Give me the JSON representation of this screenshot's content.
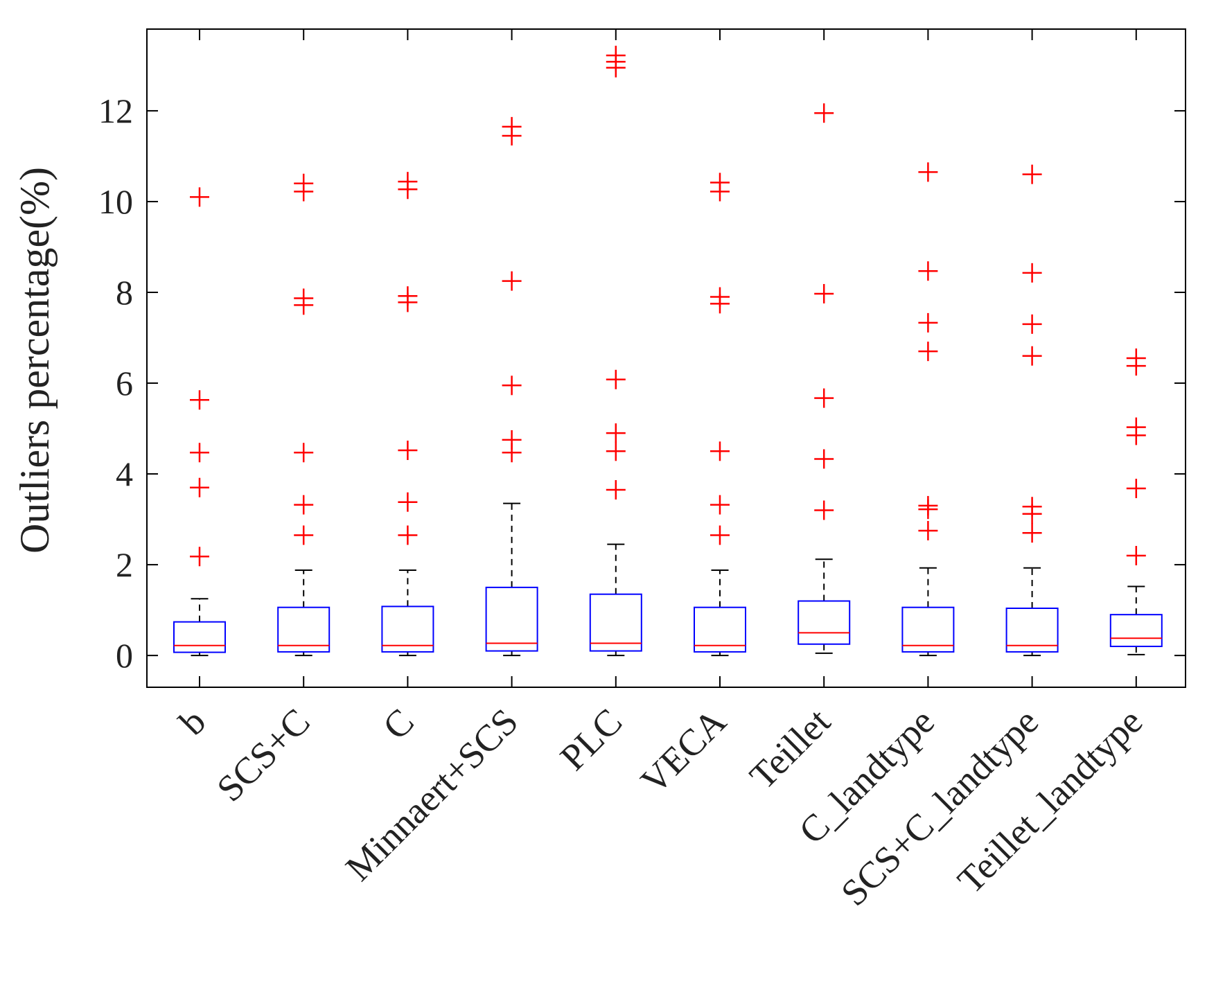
{
  "chart_data": {
    "type": "boxplot",
    "title": "",
    "xlabel": "",
    "ylabel": "Outliers percentage(%)",
    "ylim": [
      -0.7,
      13.8
    ],
    "yticks": [
      0,
      2,
      4,
      6,
      8,
      10,
      12
    ],
    "categories": [
      "b",
      "SCS+C",
      "C",
      "Minnaert+SCS",
      "PLC",
      "VECA",
      "Teillet",
      "C_landtype",
      "SCS+C_landtype",
      "Teillet_landtype"
    ],
    "boxes": [
      {
        "name": "b",
        "whisker_low": 0,
        "q1": 0.07,
        "median": 0.22,
        "q3": 0.74,
        "whisker_high": 1.25,
        "outliers": [
          2.18,
          3.7,
          4.47,
          5.63,
          10.1
        ]
      },
      {
        "name": "SCS+C",
        "whisker_low": 0,
        "q1": 0.08,
        "median": 0.22,
        "q3": 1.06,
        "whisker_high": 1.88,
        "outliers": [
          2.65,
          3.32,
          4.47,
          7.72,
          7.87,
          10.22,
          10.4
        ]
      },
      {
        "name": "C",
        "whisker_low": 0,
        "q1": 0.08,
        "median": 0.22,
        "q3": 1.08,
        "whisker_high": 1.88,
        "outliers": [
          2.65,
          3.38,
          4.52,
          7.78,
          7.92,
          10.27,
          10.44
        ]
      },
      {
        "name": "Minnaert+SCS",
        "whisker_low": 0,
        "q1": 0.1,
        "median": 0.27,
        "q3": 1.5,
        "whisker_high": 3.35,
        "outliers": [
          4.47,
          4.75,
          5.95,
          8.25,
          11.45,
          11.65
        ]
      },
      {
        "name": "PLC",
        "whisker_low": 0,
        "q1": 0.1,
        "median": 0.27,
        "q3": 1.35,
        "whisker_high": 2.45,
        "outliers": [
          3.65,
          4.5,
          4.9,
          6.08,
          12.95,
          13.08,
          13.22
        ]
      },
      {
        "name": "VECA",
        "whisker_low": 0,
        "q1": 0.08,
        "median": 0.22,
        "q3": 1.06,
        "whisker_high": 1.88,
        "outliers": [
          2.65,
          3.32,
          4.5,
          7.75,
          7.9,
          10.22,
          10.42
        ]
      },
      {
        "name": "Teillet",
        "whisker_low": 0.05,
        "q1": 0.25,
        "median": 0.5,
        "q3": 1.2,
        "whisker_high": 2.12,
        "outliers": [
          3.2,
          4.33,
          5.67,
          7.97,
          11.95
        ]
      },
      {
        "name": "C_landtype",
        "whisker_low": 0,
        "q1": 0.08,
        "median": 0.22,
        "q3": 1.06,
        "whisker_high": 1.93,
        "outliers": [
          2.75,
          3.22,
          3.3,
          6.7,
          7.33,
          8.47,
          10.65
        ]
      },
      {
        "name": "SCS+C_landtype",
        "whisker_low": 0,
        "q1": 0.08,
        "median": 0.22,
        "q3": 1.04,
        "whisker_high": 1.93,
        "outliers": [
          2.7,
          3.12,
          3.28,
          6.6,
          7.3,
          8.43,
          10.6
        ]
      },
      {
        "name": "Teillet_landtype",
        "whisker_low": 0.02,
        "q1": 0.2,
        "median": 0.38,
        "q3": 0.9,
        "whisker_high": 1.52,
        "outliers": [
          2.2,
          3.68,
          4.85,
          5.03,
          6.38,
          6.55
        ]
      }
    ],
    "colors": {
      "box": "#0000ff",
      "median": "#ff0000",
      "whisker": "#000000",
      "outlier": "#ff0000",
      "axis": "#000000"
    }
  }
}
